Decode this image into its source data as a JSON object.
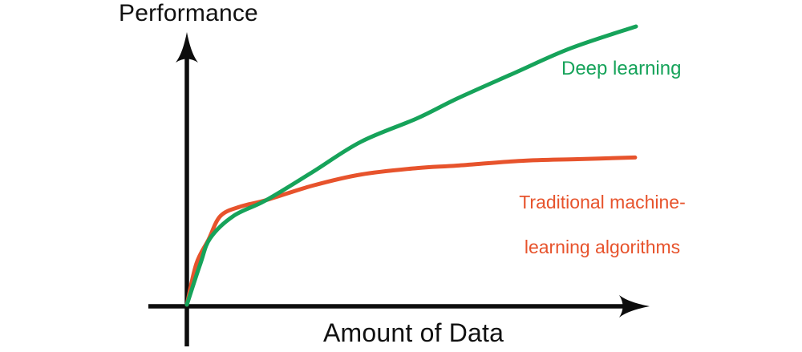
{
  "chart_data": {
    "type": "line",
    "title": "",
    "xlabel": "Amount of Data",
    "ylabel": "Performance",
    "axes": {
      "x_range": [
        0,
        1
      ],
      "y_range": [
        0,
        1
      ],
      "grid": false,
      "numeric_ticks": false,
      "style": "hand-drawn arrow axes, conceptual (no tick values)"
    },
    "series": [
      {
        "name": "Deep learning",
        "color": "#16A35A",
        "points": [
          [
            0.0,
            0.0
          ],
          [
            0.03,
            0.147
          ],
          [
            0.052,
            0.239
          ],
          [
            0.104,
            0.319
          ],
          [
            0.177,
            0.376
          ],
          [
            0.28,
            0.477
          ],
          [
            0.388,
            0.586
          ],
          [
            0.513,
            0.67
          ],
          [
            0.602,
            0.741
          ],
          [
            0.727,
            0.831
          ],
          [
            0.855,
            0.922
          ],
          [
            1.0,
            1.0
          ]
        ]
      },
      {
        "name": "Traditional machine-learning algorithms",
        "color": "#E7532C",
        "points": [
          [
            0.0,
            0.0
          ],
          [
            0.021,
            0.147
          ],
          [
            0.048,
            0.233
          ],
          [
            0.075,
            0.319
          ],
          [
            0.12,
            0.353
          ],
          [
            0.177,
            0.376
          ],
          [
            0.28,
            0.428
          ],
          [
            0.388,
            0.468
          ],
          [
            0.513,
            0.491
          ],
          [
            0.602,
            0.5
          ],
          [
            0.745,
            0.517
          ],
          [
            0.87,
            0.523
          ],
          [
            0.998,
            0.529
          ]
        ]
      }
    ],
    "legend_position": "inline annotations next to curves",
    "annotations": [
      {
        "text": "Deep learning",
        "color": "#16A35A",
        "anchor": "upper right, below green curve"
      },
      {
        "text": "Traditional machine-\nlearning algorithms",
        "color": "#E7532C",
        "anchor": "right, below orange curve"
      }
    ]
  },
  "labels": {
    "y_axis": "Performance",
    "x_axis": "Amount of Data",
    "deep_learning": "Deep learning",
    "traditional_line1": "Traditional machine-",
    "traditional_line2": "learning algorithms"
  },
  "colors": {
    "axis": "#0d0d0d",
    "background": "#ffffff",
    "deep_learning": "#16A35A",
    "traditional": "#E7532C",
    "axis_text": "#111111"
  }
}
